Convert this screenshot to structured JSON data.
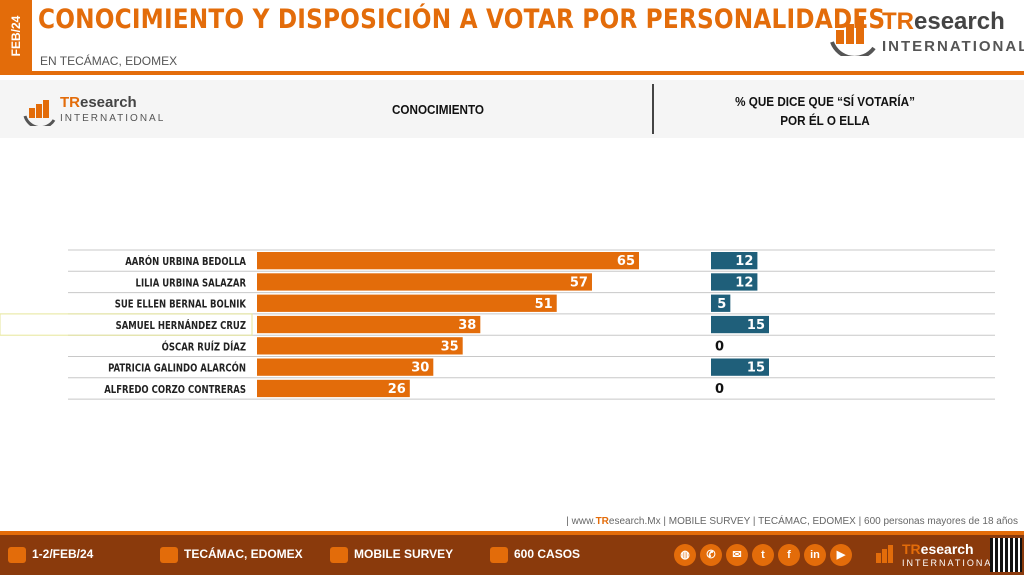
{
  "header": {
    "date_tab": "FEB/24",
    "title": "CONOCIMIENTO Y DISPOSICIÓN A VOTAR POR PERSONALIDADES",
    "subtitle": "EN TECÁMAC, EDOMEX"
  },
  "logo": {
    "brand_prefix": "TR",
    "brand_suffix": "esearch",
    "sub": "INTERNATIONAL"
  },
  "table_header": {
    "col1": "CONOCIMIENTO",
    "col2_line1": "% QUE DICE QUE “SÍ VOTARÍA”",
    "col2_line2": "POR ÉL O ELLA"
  },
  "chart_data": [
    {
      "type": "bar",
      "orientation": "horizontal",
      "categories": [
        "AARÓN URBINA BEDOLLA",
        "LILIA URBINA SALAZAR",
        "SUE ELLEN BERNAL BOLNIK",
        "SAMUEL HERNÁNDEZ CRUZ",
        "ÓSCAR RUÍZ DÍAZ",
        "PATRICIA GALINDO ALARCÓN",
        "ALFREDO CORZO CONTRERAS"
      ],
      "values": [
        65,
        57,
        51,
        38,
        35,
        30,
        26
      ],
      "color": "#e36c0a",
      "xlim": [
        0,
        100
      ],
      "data_labels": true
    },
    {
      "type": "bar",
      "orientation": "horizontal",
      "categories": [
        "AARÓN URBINA BEDOLLA",
        "LILIA URBINA SALAZAR",
        "SUE ELLEN BERNAL BOLNIK",
        "SAMUEL HERNÁNDEZ CRUZ",
        "ÓSCAR RUÍZ DÍAZ",
        "PATRICIA GALINDO ALARCÓN",
        "ALFREDO CORZO CONTRERAS"
      ],
      "values": [
        12,
        12,
        5,
        15,
        0,
        15,
        0
      ],
      "color": "#1f5f7a",
      "xlim": [
        0,
        100
      ],
      "data_labels": true
    }
  ],
  "footer": {
    "note_prefix": "| www.",
    "note_brand": "TR",
    "note_rest": "esearch.Mx | MOBILE SURVEY | TECÁMAC, EDOMEX | 600 personas mayores de 18 años",
    "items": [
      "1-2/FEB/24",
      "TECÁMAC, EDOMEX",
      "MOBILE SURVEY",
      "600 CASOS"
    ]
  },
  "icons": [
    "calendar-icon",
    "location-pin-icon",
    "survey-icon",
    "chat-bubble-icon",
    "globe-icon",
    "whatsapp-icon",
    "email-icon",
    "twitter-icon",
    "facebook-icon",
    "linkedin-icon",
    "youtube-icon",
    "qr-code-icon"
  ],
  "colors": {
    "accent": "#e36c0a",
    "secondary": "#1f5f7a",
    "footer_bg": "#8a3a0c"
  }
}
